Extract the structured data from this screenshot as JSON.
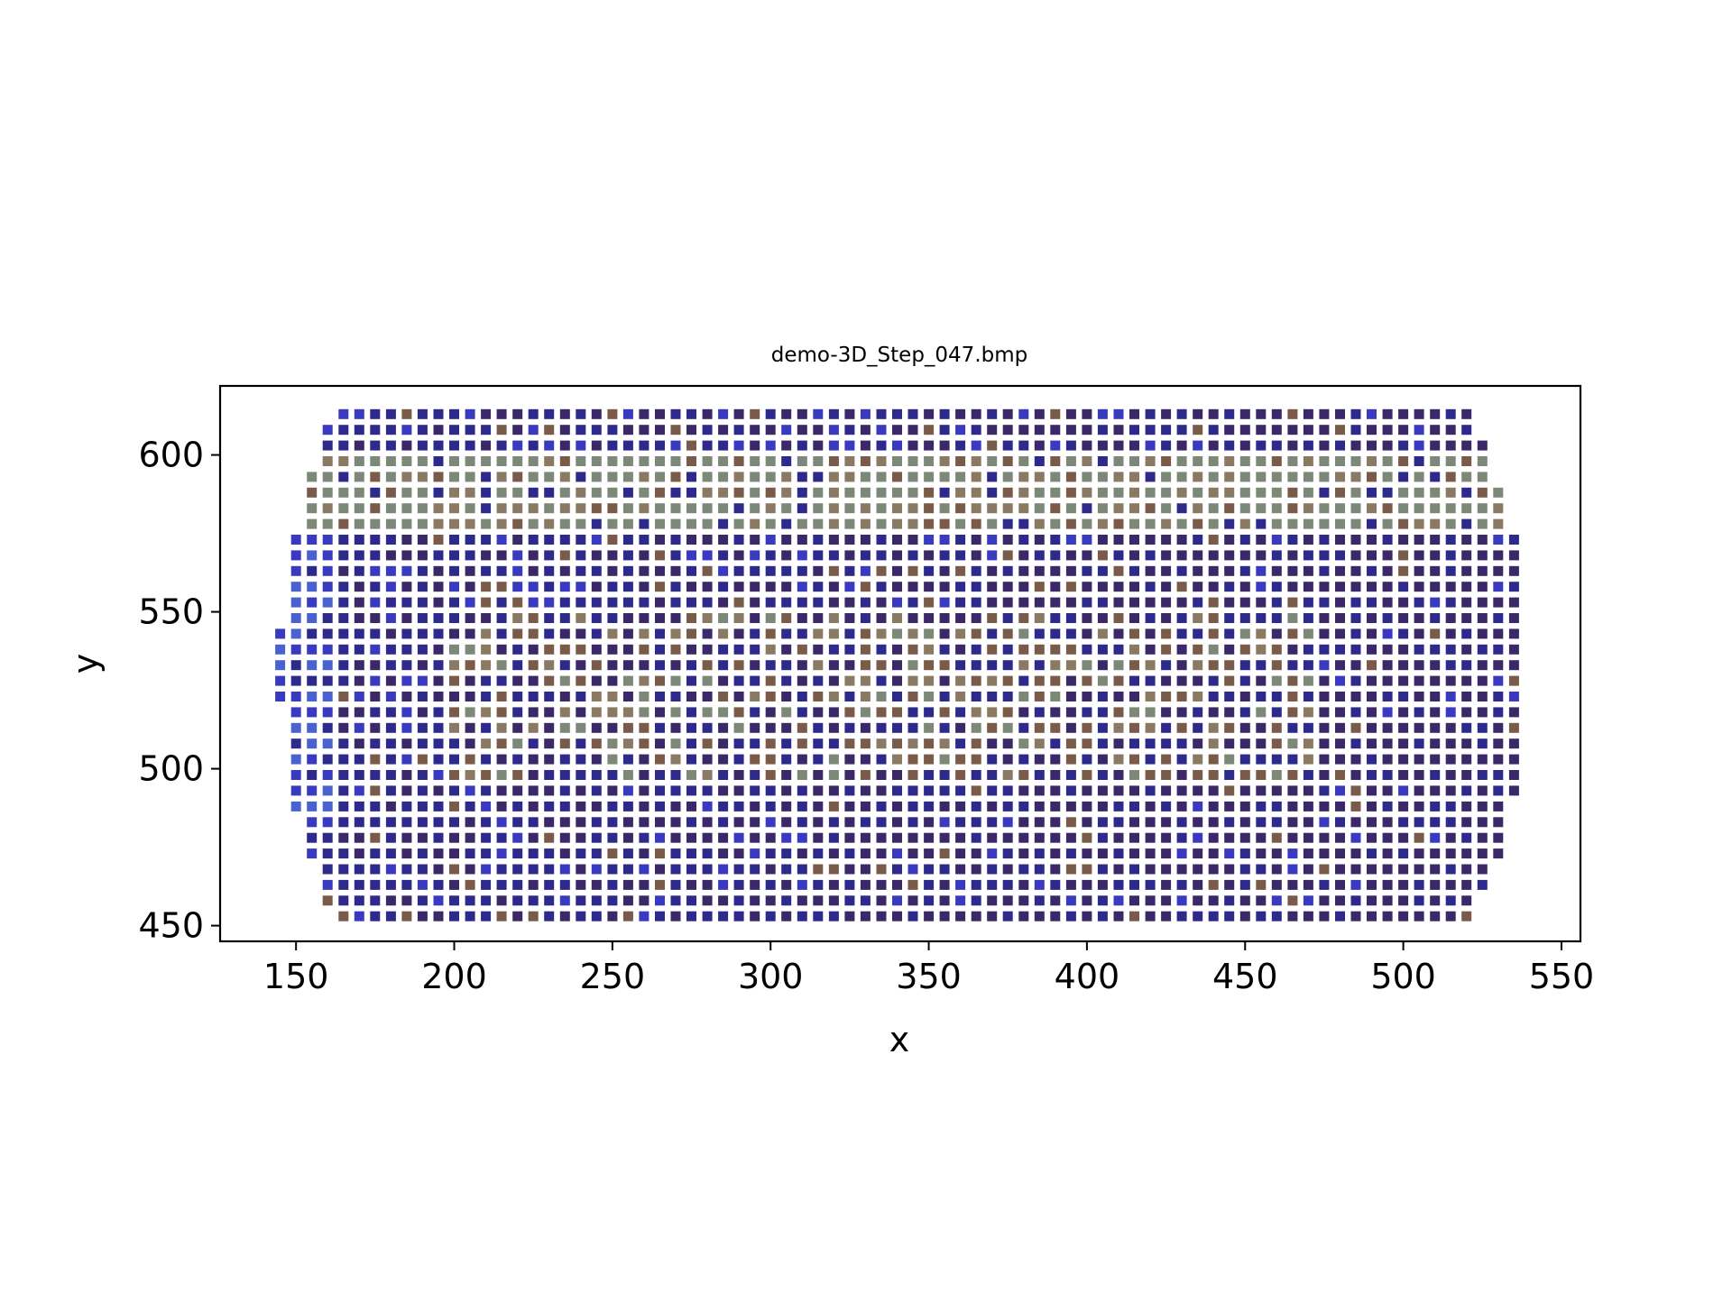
{
  "chart_data": {
    "type": "scatter",
    "title": "demo-3D_Step_047.bmp",
    "xlabel": "x",
    "ylabel": "y",
    "xlim": [
      126,
      556
    ],
    "ylim": [
      445,
      622
    ],
    "xticks": [
      150,
      200,
      250,
      300,
      350,
      400,
      450,
      500,
      550
    ],
    "yticks": [
      450,
      500,
      550,
      600
    ],
    "grid": false,
    "marker": "square",
    "x_grid": {
      "start": 145,
      "step": 5,
      "end": 537
    },
    "y_grid": {
      "start": 453,
      "step": 5,
      "end": 613
    },
    "row_extents": [
      {
        "y": 453,
        "x_min": 165,
        "x_max": 522
      },
      {
        "y": 458,
        "x_min": 160,
        "x_max": 522
      },
      {
        "y": 463,
        "x_min": 160,
        "x_max": 527
      },
      {
        "y": 468,
        "x_min": 160,
        "x_max": 527
      },
      {
        "y": 473,
        "x_min": 155,
        "x_max": 532
      },
      {
        "y": 478,
        "x_min": 155,
        "x_max": 532
      },
      {
        "y": 483,
        "x_min": 155,
        "x_max": 532
      },
      {
        "y": 488,
        "x_min": 150,
        "x_max": 532
      },
      {
        "y": 493,
        "x_min": 150,
        "x_max": 537
      },
      {
        "y": 498,
        "x_min": 150,
        "x_max": 537
      },
      {
        "y": 503,
        "x_min": 150,
        "x_max": 537
      },
      {
        "y": 508,
        "x_min": 150,
        "x_max": 537
      },
      {
        "y": 513,
        "x_min": 150,
        "x_max": 537
      },
      {
        "y": 518,
        "x_min": 150,
        "x_max": 537
      },
      {
        "y": 523,
        "x_min": 145,
        "x_max": 537
      },
      {
        "y": 528,
        "x_min": 145,
        "x_max": 537
      },
      {
        "y": 533,
        "x_min": 145,
        "x_max": 537
      },
      {
        "y": 538,
        "x_min": 145,
        "x_max": 537
      },
      {
        "y": 543,
        "x_min": 145,
        "x_max": 537
      },
      {
        "y": 548,
        "x_min": 150,
        "x_max": 537
      },
      {
        "y": 553,
        "x_min": 150,
        "x_max": 537
      },
      {
        "y": 558,
        "x_min": 150,
        "x_max": 537
      },
      {
        "y": 563,
        "x_min": 150,
        "x_max": 537
      },
      {
        "y": 568,
        "x_min": 150,
        "x_max": 537
      },
      {
        "y": 573,
        "x_min": 150,
        "x_max": 537
      },
      {
        "y": 578,
        "x_min": 155,
        "x_max": 532
      },
      {
        "y": 583,
        "x_min": 155,
        "x_max": 532
      },
      {
        "y": 588,
        "x_min": 155,
        "x_max": 532
      },
      {
        "y": 593,
        "x_min": 155,
        "x_max": 527
      },
      {
        "y": 598,
        "x_min": 160,
        "x_max": 527
      },
      {
        "y": 603,
        "x_min": 160,
        "x_max": 527
      },
      {
        "y": 608,
        "x_min": 160,
        "x_max": 522
      },
      {
        "y": 613,
        "x_min": 165,
        "x_max": 522
      }
    ],
    "colors": {
      "dark_blue": "#2e2a8c",
      "bright_blue": "#3a3ac0",
      "light_blue": "#4a62d0",
      "purple": "#3a2868",
      "brown": "#7a5a48",
      "gray_green": "#7c8878",
      "tan": "#8a7a64"
    },
    "color_regions": [
      {
        "name": "top-band",
        "y_range": [
          578,
          598
        ],
        "x_range": [
          155,
          532
        ],
        "color": "gray_green"
      },
      {
        "name": "left-edge",
        "y_range": [
          483,
          573
        ],
        "x_range": [
          145,
          160
        ],
        "color": "light_blue"
      },
      {
        "name": "center-band",
        "y_range": [
          498,
          548
        ],
        "x_range": [
          200,
          470
        ],
        "color": "brown"
      }
    ]
  }
}
